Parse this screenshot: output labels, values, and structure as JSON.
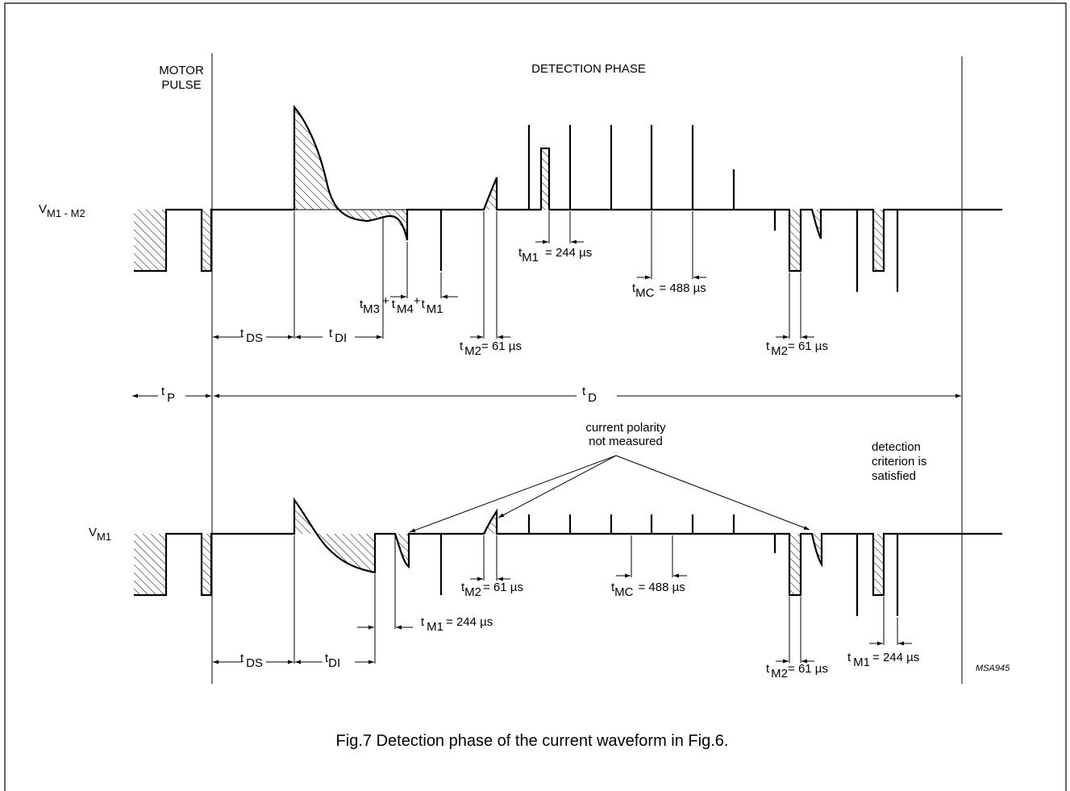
{
  "title": "Fig.7  Detection phase of the current waveform in Fig.6.",
  "code": "MSA945",
  "labels": {
    "motor_pulse_1": "MOTOR",
    "motor_pulse_2": "PULSE",
    "detection_phase": "DETECTION PHASE",
    "v_m1_m2_main": "V",
    "v_m1_m2_sub": "M1 - M2",
    "v_m1_main": "V",
    "v_m1_sub": "M1",
    "polarity_1": "current polarity",
    "polarity_2": "not measured",
    "criterion_1": "detection",
    "criterion_2": "criterion is",
    "criterion_3": "satisfied"
  },
  "top_annotations": {
    "tds": [
      "t",
      "DS"
    ],
    "tdi": [
      "t",
      "DI"
    ],
    "tm_sum": [
      "t",
      "M3",
      "+",
      "t",
      "M4",
      "+",
      "t",
      "M1"
    ],
    "tm2_a": [
      "t",
      "M2",
      "= 61 µs"
    ],
    "tm1": [
      "t",
      "M1",
      "= 244 µs"
    ],
    "tmc": [
      "t",
      "MC",
      "= 488 µs"
    ],
    "tm2_b": [
      "t",
      "M2",
      "= 61 µs"
    ]
  },
  "middle_annotations": {
    "tp": [
      "t",
      "P"
    ],
    "td": [
      "t",
      "D"
    ]
  },
  "bottom_annotations": {
    "tds": [
      "t",
      "DS"
    ],
    "tdi": [
      "t",
      "DI"
    ],
    "tm1_a": [
      "t",
      "M1",
      "= 244 µs"
    ],
    "tm2_a": [
      "t",
      "M2",
      "= 61 µs"
    ],
    "tmc": [
      "t",
      "MC",
      "= 488 µs"
    ],
    "tm2_b": [
      "t",
      "M2",
      "= 61 µs"
    ],
    "tm1_b": [
      "t",
      "M1",
      "= 244 µs"
    ]
  }
}
